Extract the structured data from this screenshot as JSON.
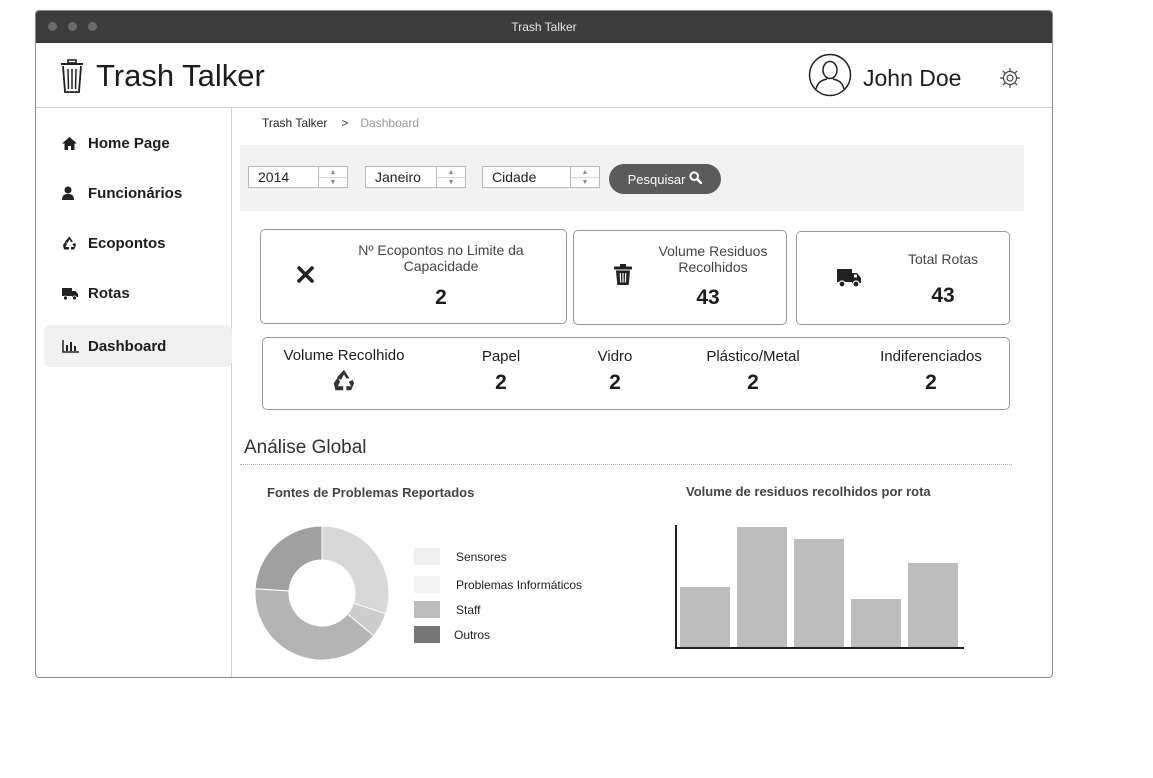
{
  "window": {
    "title": "Trash Talker"
  },
  "header": {
    "app_name": "Trash Talker",
    "user_name": "John Doe"
  },
  "sidebar": {
    "items": [
      {
        "label": "Home Page",
        "icon": "home-icon"
      },
      {
        "label": "Funcionários",
        "icon": "user-icon"
      },
      {
        "label": "Ecopontos",
        "icon": "recycle-icon"
      },
      {
        "label": "Rotas",
        "icon": "truck-icon"
      },
      {
        "label": "Dashboard",
        "icon": "bar-chart-icon",
        "active": true
      }
    ]
  },
  "breadcrumb": {
    "home": "Trash Talker",
    "separator": ">",
    "current": "Dashboard"
  },
  "filters": {
    "year": "2014",
    "month": "Janeiro",
    "city": "Cidade",
    "search_label": "Pesquisar"
  },
  "cards": [
    {
      "label": "Nº Ecopontos no Limite da Capacidade",
      "value": "2",
      "icon": "close-icon"
    },
    {
      "label": "Volume Residuos Recolhidos",
      "value": "43",
      "icon": "trash-icon"
    },
    {
      "label": "Total Rotas",
      "value": "43",
      "icon": "truck-icon"
    }
  ],
  "waste": {
    "title": "Volume Recolhido",
    "icon": "recycle-icon",
    "items": [
      {
        "label": "Papel",
        "value": "2"
      },
      {
        "label": "Vidro",
        "value": "2"
      },
      {
        "label": "Plástico/Metal",
        "value": "2"
      },
      {
        "label": "Indiferenciados",
        "value": "2"
      }
    ]
  },
  "section_title": "Análise Global",
  "chart_data": [
    {
      "type": "pie",
      "title": "Fontes de Problemas Reportados",
      "labels": [
        "Sensores",
        "Problemas Informáticos",
        "Staff",
        "Outros"
      ],
      "values": [
        30,
        6,
        40,
        24
      ],
      "colors": [
        "#d8d8d8",
        "#cdcdcd",
        "#b4b4b4",
        "#a0a0a0"
      ],
      "legend_colors": [
        "#efefef",
        "#f3f3f3",
        "#bdbdbd",
        "#777777"
      ],
      "donut": true,
      "legend": "right"
    },
    {
      "type": "bar",
      "title": "Volume de residuos recolhidos por rota",
      "values": [
        50,
        100,
        90,
        40,
        70
      ],
      "ylim": [
        0,
        100
      ],
      "color": "#bdbdbd",
      "xlabel": "",
      "ylabel": ""
    }
  ]
}
